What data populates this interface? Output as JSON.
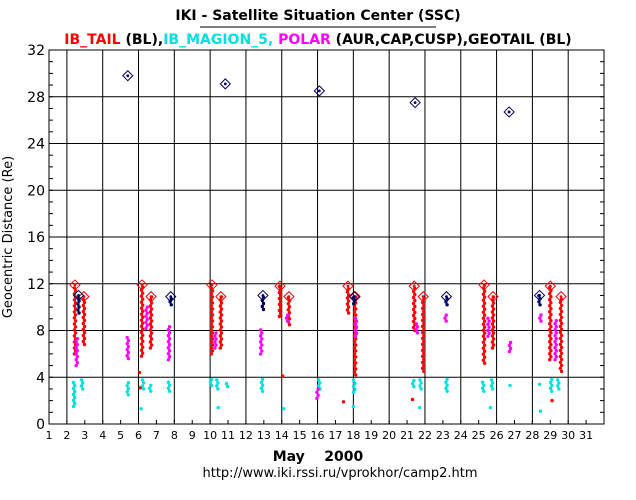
{
  "chart_data": {
    "type": "scatter",
    "title": "IKI - Satellite Situation Center (SSC)",
    "subtitle_parts": [
      {
        "text": "IB_TAIL",
        "color": "#ff0000"
      },
      {
        "text": " (BL),",
        "color": "#000000"
      },
      {
        "text": "IB_MAGION_5,",
        "color": "#00e0e0"
      },
      {
        "text": " POLAR",
        "color": "#ff00ff"
      },
      {
        "text": " (AUR,CAP,CUSP),",
        "color": "#000000"
      },
      {
        "text": "GEOTAIL",
        "color": "#000000"
      },
      {
        "text": " (BL)",
        "color": "#000000"
      }
    ],
    "xlabel": "May    2000",
    "ylabel": "Geocentric Distance (Re)",
    "url": "http://www.iki.rssi.ru/vprokhor/camp2.htm",
    "xlim": [
      1,
      32
    ],
    "ylim": [
      0,
      32
    ],
    "x_ticks": [
      1,
      2,
      3,
      4,
      5,
      6,
      7,
      8,
      9,
      10,
      11,
      12,
      13,
      14,
      15,
      16,
      17,
      18,
      19,
      20,
      21,
      22,
      23,
      24,
      25,
      26,
      27,
      28,
      29,
      30,
      31
    ],
    "y_ticks": [
      0,
      4,
      8,
      12,
      16,
      20,
      24,
      28,
      32
    ],
    "grid": true,
    "series": [
      {
        "name": "IB_TAIL",
        "color": "#ff0000",
        "segments": [
          {
            "x": 2.45,
            "y_from": 6.0,
            "y_to": 11.9
          },
          {
            "x": 2.95,
            "y_from": 6.8,
            "y_to": 10.9
          },
          {
            "x": 6.2,
            "y_from": 5.8,
            "y_to": 11.9
          },
          {
            "x": 6.7,
            "y_from": 6.5,
            "y_to": 10.9
          },
          {
            "x": 10.1,
            "y_from": 6.0,
            "y_to": 11.9
          },
          {
            "x": 10.6,
            "y_from": 6.5,
            "y_to": 10.9
          },
          {
            "x": 13.9,
            "y_from": 9.2,
            "y_to": 11.8
          },
          {
            "x": 14.4,
            "y_from": 8.5,
            "y_to": 10.9
          },
          {
            "x": 17.7,
            "y_from": 9.5,
            "y_to": 11.8
          },
          {
            "x": 18.1,
            "y_from": 4.2,
            "y_to": 10.9
          },
          {
            "x": 21.4,
            "y_from": 8.0,
            "y_to": 11.8
          },
          {
            "x": 21.9,
            "y_from": 4.5,
            "y_to": 10.9
          },
          {
            "x": 25.3,
            "y_from": 5.2,
            "y_to": 11.9
          },
          {
            "x": 25.8,
            "y_from": 6.5,
            "y_to": 10.9
          },
          {
            "x": 29.0,
            "y_from": 5.5,
            "y_to": 11.8
          },
          {
            "x": 29.6,
            "y_from": 4.5,
            "y_to": 10.9
          }
        ],
        "diamonds": [
          {
            "x": 2.45,
            "y": 11.9
          },
          {
            "x": 2.95,
            "y": 10.9
          },
          {
            "x": 6.2,
            "y": 11.9
          },
          {
            "x": 6.7,
            "y": 10.9
          },
          {
            "x": 10.1,
            "y": 11.9
          },
          {
            "x": 10.6,
            "y": 10.9
          },
          {
            "x": 13.9,
            "y": 11.8
          },
          {
            "x": 14.4,
            "y": 10.9
          },
          {
            "x": 17.7,
            "y": 11.8
          },
          {
            "x": 18.1,
            "y": 10.9
          },
          {
            "x": 21.4,
            "y": 11.8
          },
          {
            "x": 21.9,
            "y": 10.9
          },
          {
            "x": 25.3,
            "y": 11.9
          },
          {
            "x": 25.8,
            "y": 10.9
          },
          {
            "x": 29.0,
            "y": 11.8
          },
          {
            "x": 29.6,
            "y": 10.9
          }
        ],
        "isolated_points": [
          {
            "x": 6.05,
            "y": 4.4
          },
          {
            "x": 6.1,
            "y": 3.1
          },
          {
            "x": 14.05,
            "y": 4.1
          },
          {
            "x": 17.45,
            "y": 1.9
          },
          {
            "x": 21.3,
            "y": 2.1
          },
          {
            "x": 29.1,
            "y": 2.0
          }
        ]
      },
      {
        "name": "IB_MAGION_5",
        "color": "#00e0e0",
        "segments": [
          {
            "x": 2.4,
            "y_from": 1.5,
            "y_to": 3.8
          },
          {
            "x": 2.85,
            "y_from": 3.0,
            "y_to": 3.9
          },
          {
            "x": 5.4,
            "y_from": 2.5,
            "y_to": 3.6
          },
          {
            "x": 6.25,
            "y_from": 3.0,
            "y_to": 3.8
          },
          {
            "x": 6.65,
            "y_from": 2.8,
            "y_to": 3.5
          },
          {
            "x": 7.7,
            "y_from": 2.8,
            "y_to": 3.8
          },
          {
            "x": 10.05,
            "y_from": 3.3,
            "y_to": 3.9
          },
          {
            "x": 10.4,
            "y_from": 3.0,
            "y_to": 3.8
          },
          {
            "x": 10.95,
            "y_from": 3.2,
            "y_to": 3.6
          },
          {
            "x": 12.9,
            "y_from": 2.8,
            "y_to": 3.9
          },
          {
            "x": 16.1,
            "y_from": 3.0,
            "y_to": 3.8
          },
          {
            "x": 18.05,
            "y_from": 2.7,
            "y_to": 3.9
          },
          {
            "x": 21.35,
            "y_from": 3.2,
            "y_to": 3.9
          },
          {
            "x": 21.75,
            "y_from": 3.0,
            "y_to": 3.9
          },
          {
            "x": 23.2,
            "y_from": 2.8,
            "y_to": 3.9
          },
          {
            "x": 25.25,
            "y_from": 2.8,
            "y_to": 3.8
          },
          {
            "x": 25.75,
            "y_from": 3.0,
            "y_to": 3.9
          },
          {
            "x": 29.05,
            "y_from": 2.8,
            "y_to": 3.9
          },
          {
            "x": 29.45,
            "y_from": 3.0,
            "y_to": 3.9
          }
        ],
        "isolated_points": [
          {
            "x": 6.15,
            "y": 1.3
          },
          {
            "x": 10.45,
            "y": 1.4
          },
          {
            "x": 14.1,
            "y": 1.3
          },
          {
            "x": 18.0,
            "y": 1.5
          },
          {
            "x": 21.7,
            "y": 1.4
          },
          {
            "x": 25.65,
            "y": 1.4
          },
          {
            "x": 26.75,
            "y": 3.3
          },
          {
            "x": 28.45,
            "y": 1.1
          },
          {
            "x": 28.4,
            "y": 3.4
          }
        ]
      },
      {
        "name": "POLAR",
        "color": "#ff00ff",
        "segments": [
          {
            "x": 2.55,
            "y_from": 5.0,
            "y_to": 7.5
          },
          {
            "x": 5.4,
            "y_from": 5.6,
            "y_to": 7.6
          },
          {
            "x": 6.45,
            "y_from": 8.2,
            "y_to": 10.2
          },
          {
            "x": 7.7,
            "y_from": 5.5,
            "y_to": 8.5
          },
          {
            "x": 10.3,
            "y_from": 6.5,
            "y_to": 8.0
          },
          {
            "x": 12.85,
            "y_from": 6.0,
            "y_to": 8.2
          },
          {
            "x": 14.3,
            "y_from": 8.8,
            "y_to": 9.5
          },
          {
            "x": 16.0,
            "y_from": 2.2,
            "y_to": 3.0
          },
          {
            "x": 18.15,
            "y_from": 7.5,
            "y_to": 9.2
          },
          {
            "x": 21.55,
            "y_from": 7.8,
            "y_to": 8.6
          },
          {
            "x": 23.15,
            "y_from": 8.8,
            "y_to": 9.4
          },
          {
            "x": 25.55,
            "y_from": 7.5,
            "y_to": 9.2
          },
          {
            "x": 26.75,
            "y_from": 6.2,
            "y_to": 7.0
          },
          {
            "x": 28.45,
            "y_from": 8.8,
            "y_to": 9.5
          },
          {
            "x": 29.3,
            "y_from": 5.5,
            "y_to": 9.0
          }
        ],
        "isolated_points": []
      },
      {
        "name": "GEOTAIL",
        "color": "#000060",
        "segments": [
          {
            "x": 2.65,
            "y_from": 9.5,
            "y_to": 11.0
          },
          {
            "x": 7.8,
            "y_from": 10.2,
            "y_to": 10.9
          },
          {
            "x": 12.95,
            "y_from": 9.8,
            "y_to": 11.0
          },
          {
            "x": 18.05,
            "y_from": 10.3,
            "y_to": 10.9
          },
          {
            "x": 23.2,
            "y_from": 10.2,
            "y_to": 10.9
          },
          {
            "x": 28.4,
            "y_from": 10.2,
            "y_to": 11.0
          }
        ],
        "diamonds": [
          {
            "x": 2.65,
            "y": 11.0
          },
          {
            "x": 5.4,
            "y": 29.8
          },
          {
            "x": 7.8,
            "y": 10.9
          },
          {
            "x": 10.85,
            "y": 29.1
          },
          {
            "x": 12.95,
            "y": 11.0
          },
          {
            "x": 16.1,
            "y": 28.5
          },
          {
            "x": 18.05,
            "y": 10.9
          },
          {
            "x": 21.45,
            "y": 27.5
          },
          {
            "x": 23.2,
            "y": 10.9
          },
          {
            "x": 26.7,
            "y": 26.7
          },
          {
            "x": 28.4,
            "y": 11.0
          }
        ],
        "isolated_points": []
      }
    ]
  }
}
